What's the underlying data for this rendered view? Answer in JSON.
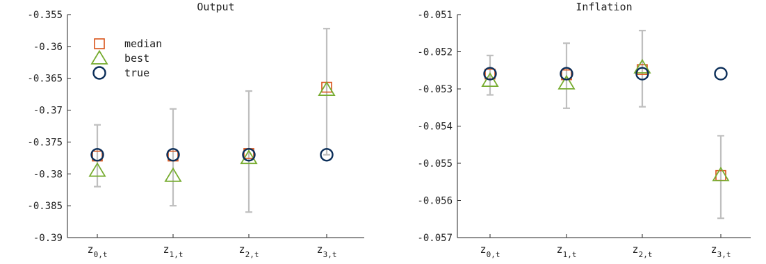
{
  "chart_data": [
    {
      "type": "scatter",
      "title": "Output",
      "categories": [
        "z_{0,t}",
        "z_{1,t}",
        "z_{2,t}",
        "z_{3,t}"
      ],
      "ylim": [
        -0.39,
        -0.355
      ],
      "yticks": [
        -0.355,
        -0.36,
        -0.365,
        -0.37,
        -0.375,
        -0.38,
        -0.385,
        -0.39
      ],
      "ytick_labels": [
        "-0.355",
        "-0.36",
        "-0.365",
        "-0.37",
        "-0.375",
        "-0.38",
        "-0.385",
        "-0.39"
      ],
      "error_bars": {
        "low": [
          -0.382,
          -0.385,
          -0.386,
          -0.377
        ],
        "high": [
          -0.3723,
          -0.3698,
          -0.367,
          -0.3572
        ]
      },
      "series": [
        {
          "name": "median",
          "marker": "square",
          "color": "#d95319",
          "values": [
            -0.3772,
            -0.3772,
            -0.3768,
            -0.3664
          ]
        },
        {
          "name": "best",
          "marker": "triangle",
          "color": "#77ac30",
          "values": [
            -0.3795,
            -0.3803,
            -0.3775,
            -0.3668
          ]
        },
        {
          "name": "true",
          "marker": "circle",
          "color": "#0b2e59",
          "values": [
            -0.377,
            -0.377,
            -0.377,
            -0.377
          ]
        }
      ],
      "legend": "top-left"
    },
    {
      "type": "scatter",
      "title": "Inflation",
      "categories": [
        "z_{0,t}",
        "z_{1,t}",
        "z_{2,t}",
        "z_{3,t}"
      ],
      "ylim": [
        -0.057,
        -0.051
      ],
      "yticks": [
        -0.051,
        -0.052,
        -0.053,
        -0.054,
        -0.055,
        -0.056,
        -0.057
      ],
      "ytick_labels": [
        "-0.051",
        "-0.052",
        "-0.053",
        "-0.054",
        "-0.055",
        "-0.056",
        "-0.057"
      ],
      "error_bars": {
        "low": [
          -0.05316,
          -0.05352,
          -0.05348,
          -0.05648
        ],
        "high": [
          -0.0521,
          -0.05177,
          -0.05143,
          -0.05426
        ]
      },
      "series": [
        {
          "name": "median",
          "marker": "square",
          "color": "#d95319",
          "values": [
            -0.0526,
            -0.05262,
            -0.05248,
            -0.05533
          ]
        },
        {
          "name": "best",
          "marker": "triangle",
          "color": "#77ac30",
          "values": [
            -0.05278,
            -0.05285,
            -0.05242,
            -0.05532
          ]
        },
        {
          "name": "true",
          "marker": "circle",
          "color": "#0b2e59",
          "values": [
            -0.05259,
            -0.05259,
            -0.05259,
            -0.05259
          ]
        }
      ]
    }
  ]
}
